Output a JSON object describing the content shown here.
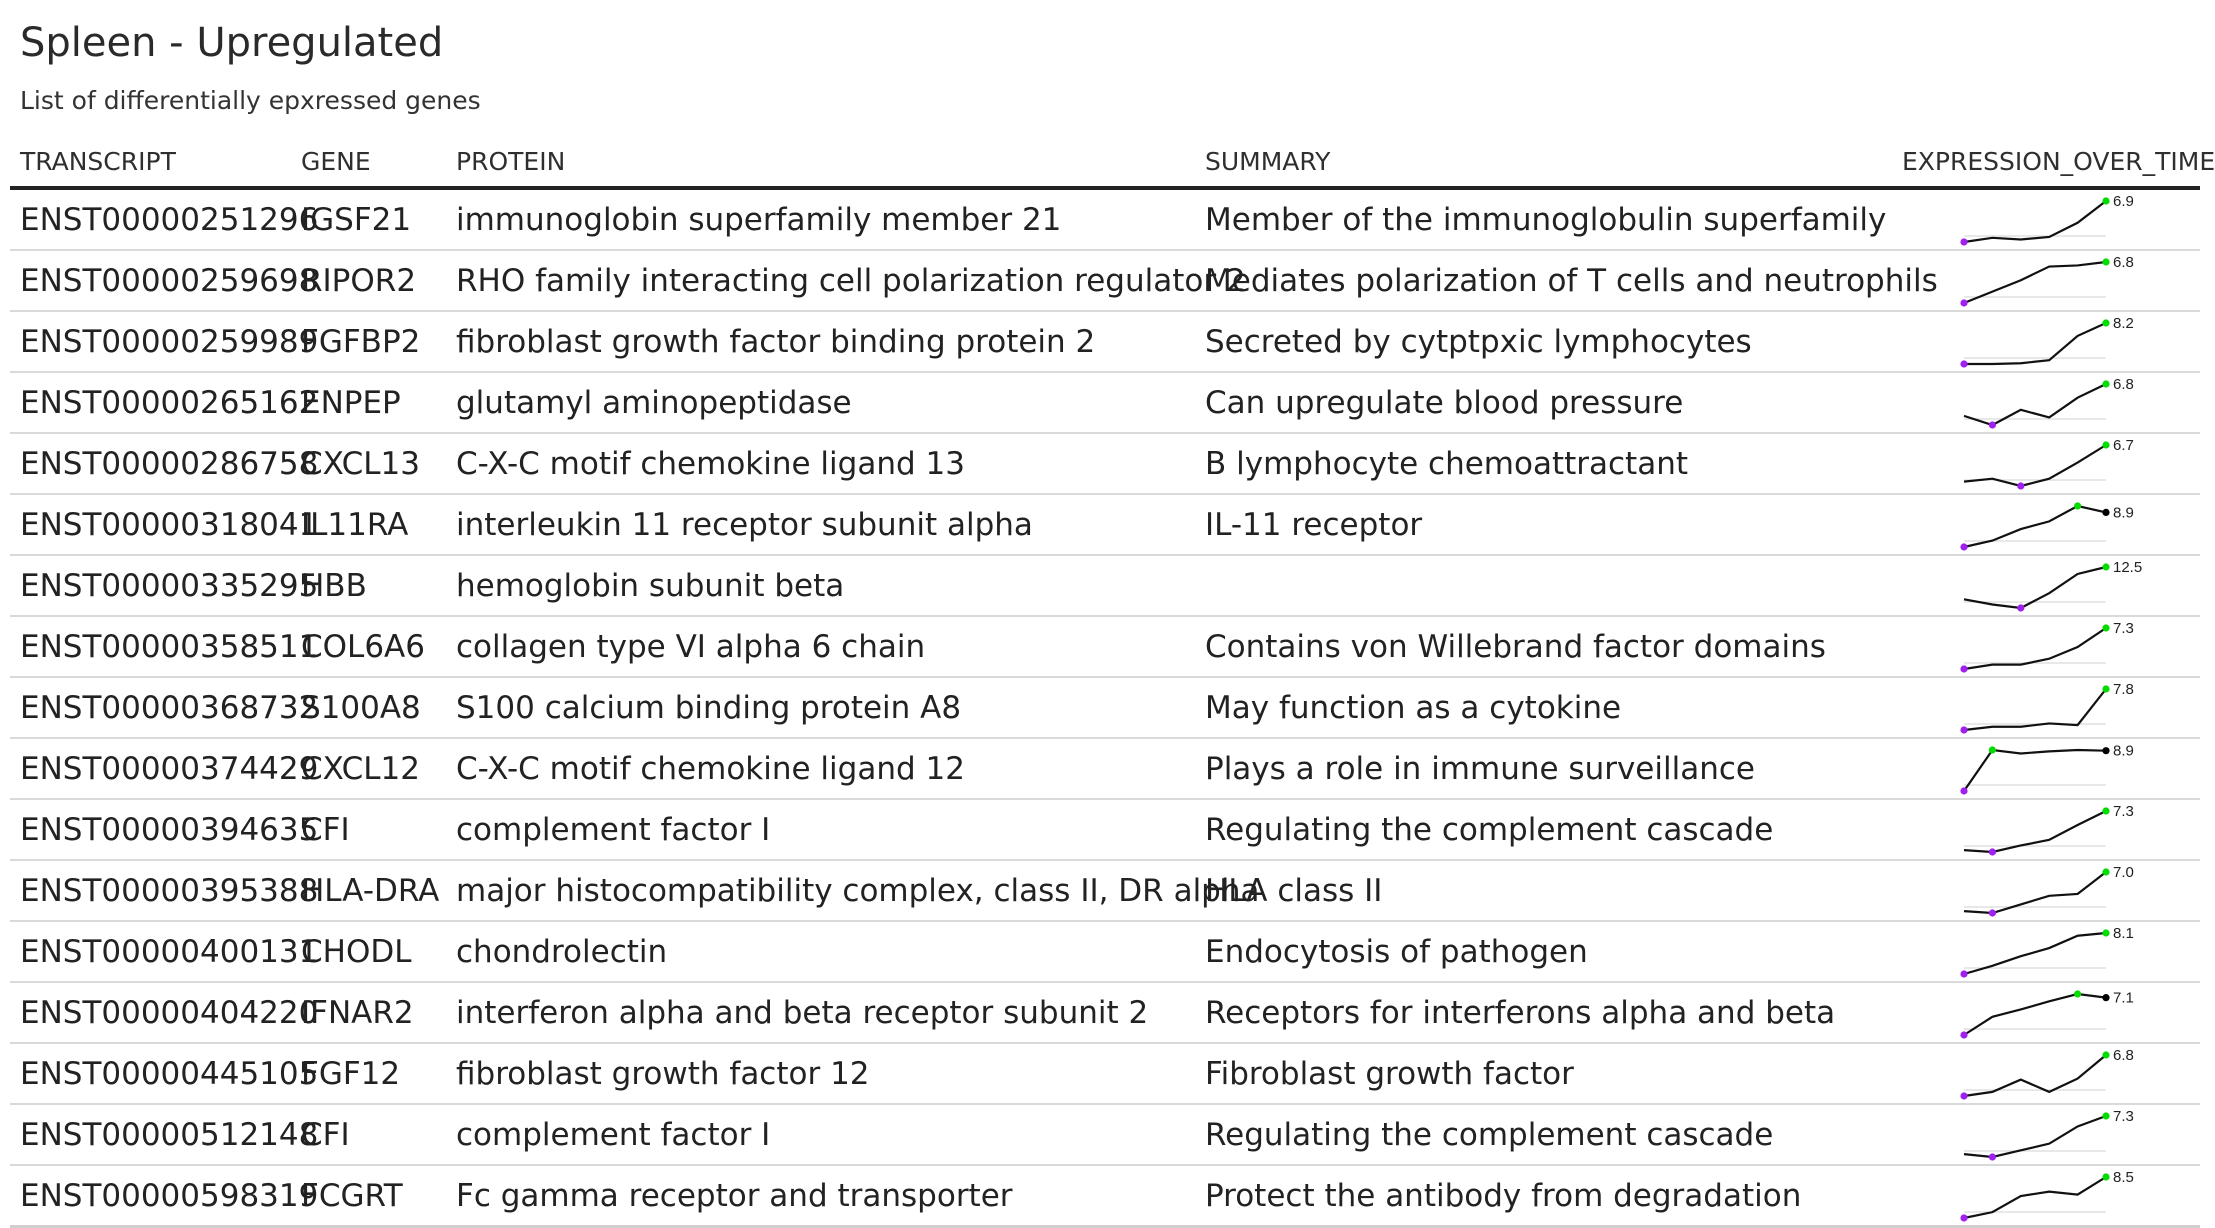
{
  "title": "Spleen - Upregulated",
  "subtitle": "List of differentially epxressed genes",
  "columns": {
    "transcript": "TRANSCRIPT",
    "gene": "GENE",
    "protein": "PROTEIN",
    "summary": "SUMMARY",
    "expression": "EXPRESSION_OVER_TIME"
  },
  "colors": {
    "min_point": "#a020f0",
    "max_point": "#00dd00",
    "last_point": "#000000",
    "line": "#111111"
  },
  "rows": [
    {
      "transcript": "ENST00000251296",
      "gene": "IGSF21",
      "protein": "immunoglobin superfamily member 21",
      "summary": "Member of the immunoglobulin superfamily",
      "expression": [
        2.0,
        2.5,
        2.3,
        2.6,
        4.3,
        6.9
      ],
      "last_label": "6.9"
    },
    {
      "transcript": "ENST00000259698",
      "gene": "RIPOR2",
      "protein": "RHO family interacting cell polarization regulator 2",
      "summary": "Mediates polarization of T cells and neutrophils",
      "expression": [
        3.2,
        4.2,
        5.2,
        6.4,
        6.5,
        6.8
      ],
      "last_label": "6.8"
    },
    {
      "transcript": "ENST00000259989",
      "gene": "FGFBP2",
      "protein": "fibroblast growth factor binding protein 2",
      "summary": "Secreted by cytptpxic lymphocytes",
      "expression": [
        2.8,
        2.8,
        2.9,
        3.3,
        6.5,
        8.2
      ],
      "last_label": "8.2"
    },
    {
      "transcript": "ENST00000265162",
      "gene": "ENPEP",
      "protein": "glutamyl aminopeptidase",
      "summary": "Can upregulate blood pressure",
      "expression": [
        4.7,
        4.1,
        5.1,
        4.6,
        5.9,
        6.8
      ],
      "last_label": "6.8"
    },
    {
      "transcript": "ENST00000286758",
      "gene": "CXCL13",
      "protein": "C-X-C motif chemokine ligand 13",
      "summary": "B lymphocyte chemoattractant",
      "expression": [
        4.2,
        4.4,
        3.9,
        4.4,
        5.5,
        6.7
      ],
      "last_label": "6.7"
    },
    {
      "transcript": "ENST00000318041",
      "gene": "IL11RA",
      "protein": "interleukin 11 receptor subunit alpha",
      "summary": "IL-11 receptor",
      "expression": [
        6.2,
        6.7,
        7.6,
        8.2,
        9.4,
        8.9
      ],
      "last_label": "8.9"
    },
    {
      "transcript": "ENST00000335295",
      "gene": "HBB",
      "protein": "hemoglobin subunit beta",
      "summary": "",
      "expression": [
        8.8,
        8.2,
        7.8,
        9.5,
        11.7,
        12.5
      ],
      "last_label": "12.5"
    },
    {
      "transcript": "ENST00000358511",
      "gene": "COL6A6",
      "protein": "collagen type VI alpha 6 chain",
      "summary": "Contains von Willebrand factor domains",
      "expression": [
        4.5,
        4.8,
        4.8,
        5.2,
        6.0,
        7.3
      ],
      "last_label": "7.3"
    },
    {
      "transcript": "ENST00000368732",
      "gene": "S100A8",
      "protein": "S100 calcium binding protein A8",
      "summary": "May function as a cytokine",
      "expression": [
        5.3,
        5.5,
        5.5,
        5.7,
        5.6,
        7.8
      ],
      "last_label": "7.8"
    },
    {
      "transcript": "ENST00000374429",
      "gene": "CXCL12",
      "protein": "C-X-C motif chemokine ligand 12",
      "summary": "Plays a role in immune surveillance",
      "expression": [
        6.0,
        8.95,
        8.7,
        8.85,
        8.95,
        8.9
      ],
      "last_label": "8.9"
    },
    {
      "transcript": "ENST00000394635",
      "gene": "CFI",
      "protein": "complement factor I",
      "summary": "Regulating the complement cascade",
      "expression": [
        3.1,
        2.9,
        3.6,
        4.2,
        5.8,
        7.3
      ],
      "last_label": "7.3"
    },
    {
      "transcript": "ENST00000395388",
      "gene": "HLA-DRA",
      "protein": "major histocompatibility complex, class II, DR alpha",
      "summary": "HLA class II",
      "expression": [
        2.9,
        2.7,
        3.6,
        4.5,
        4.7,
        7.0
      ],
      "last_label": "7.0"
    },
    {
      "transcript": "ENST00000400131",
      "gene": "CHODL",
      "protein": "chondrolectin",
      "summary": "Endocytosis of pathogen",
      "expression": [
        5.1,
        5.7,
        6.4,
        7.0,
        7.9,
        8.1
      ],
      "last_label": "8.1"
    },
    {
      "transcript": "ENST00000404220",
      "gene": "IFNAR2",
      "protein": "interferon alpha and beta receptor subunit 2",
      "summary": "Receptors for interferons alpha and beta",
      "expression": [
        3.0,
        5.0,
        5.8,
        6.7,
        7.5,
        7.1
      ],
      "last_label": "7.1"
    },
    {
      "transcript": "ENST00000445105",
      "gene": "FGF12",
      "protein": "fibroblast growth factor 12",
      "summary": "Fibroblast growth factor",
      "expression": [
        2.8,
        3.2,
        4.4,
        3.2,
        4.5,
        6.8
      ],
      "last_label": "6.8"
    },
    {
      "transcript": "ENST00000512148",
      "gene": "CFI",
      "protein": "complement factor I",
      "summary": "Regulating the complement cascade",
      "expression": [
        3.3,
        3.0,
        3.7,
        4.4,
        6.2,
        7.3
      ],
      "last_label": "7.3"
    },
    {
      "transcript": "ENST00000598319",
      "gene": "FCGRT",
      "protein": "Fc gamma receptor and transporter",
      "summary": "Protect the antibody from degradation",
      "expression": [
        5.7,
        6.1,
        7.2,
        7.5,
        7.3,
        8.5
      ],
      "last_label": "8.5"
    }
  ]
}
